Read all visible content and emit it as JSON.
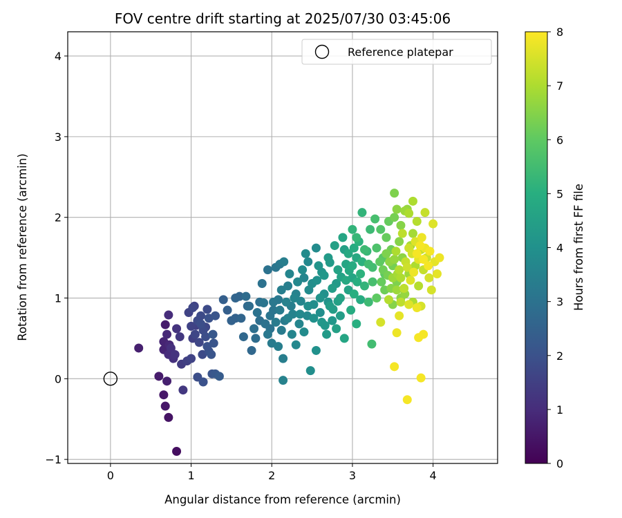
{
  "chart_data": {
    "type": "scatter",
    "title": "FOV centre drift starting at 2025/07/30 03:45:06",
    "xlabel": "Angular distance from reference (arcmin)",
    "ylabel": "Rotation from reference (arcmin)",
    "xlim": [
      -0.53,
      4.8
    ],
    "ylim": [
      -1.05,
      4.3
    ],
    "xticks": [
      0,
      1,
      2,
      3,
      4
    ],
    "yticks": [
      -1,
      0,
      1,
      2,
      3,
      4
    ],
    "xtick_labels": [
      "0",
      "1",
      "2",
      "3",
      "4"
    ],
    "ytick_labels": [
      "−1",
      "0",
      "1",
      "2",
      "3",
      "4"
    ],
    "grid": true,
    "legend": {
      "placement": "upper-right",
      "entries": [
        "Reference platepar"
      ]
    },
    "reference_point": {
      "x": 0,
      "y": 0,
      "label": "Reference platepar"
    },
    "colorbar": {
      "label": "Hours from first FF file",
      "range": [
        0,
        8
      ],
      "ticks": [
        0,
        1,
        2,
        3,
        4,
        5,
        6,
        7,
        8
      ],
      "tick_labels": [
        "0",
        "1",
        "2",
        "3",
        "4",
        "5",
        "6",
        "7",
        "8"
      ],
      "colormap": "viridis"
    },
    "points": [
      [
        0.35,
        0.38,
        0.7
      ],
      [
        0.6,
        0.03,
        0.6
      ],
      [
        0.66,
        -0.2,
        0.5
      ],
      [
        0.68,
        -0.34,
        0.5
      ],
      [
        0.72,
        -0.48,
        0.4
      ],
      [
        0.82,
        -0.9,
        0.3
      ],
      [
        0.66,
        0.46,
        0.8
      ],
      [
        0.68,
        0.67,
        0.6
      ],
      [
        0.7,
        -0.03,
        0.7
      ],
      [
        0.7,
        0.55,
        0.9
      ],
      [
        0.72,
        0.79,
        1.0
      ],
      [
        0.72,
        0.3,
        1.0
      ],
      [
        0.75,
        0.38,
        1.1
      ],
      [
        0.78,
        0.25,
        1.1
      ],
      [
        0.82,
        0.62,
        1.2
      ],
      [
        0.86,
        0.52,
        1.3
      ],
      [
        0.88,
        0.18,
        1.4
      ],
      [
        0.9,
        -0.14,
        1.3
      ],
      [
        0.66,
        0.36,
        0.8
      ],
      [
        0.8,
        0.3,
        1.2
      ],
      [
        0.73,
        0.42,
        0.9
      ],
      [
        0.97,
        0.82,
        1.6
      ],
      [
        1.0,
        0.65,
        1.6
      ],
      [
        1.02,
        0.88,
        1.7
      ],
      [
        1.05,
        0.55,
        1.7
      ],
      [
        1.08,
        0.72,
        1.8
      ],
      [
        1.1,
        0.45,
        1.7
      ],
      [
        1.12,
        0.68,
        1.9
      ],
      [
        1.15,
        0.6,
        1.8
      ],
      [
        1.18,
        0.52,
        1.9
      ],
      [
        1.2,
        0.4,
        2.0
      ],
      [
        1.22,
        0.75,
        2.0
      ],
      [
        1.25,
        0.3,
        2.1
      ],
      [
        1.27,
        0.55,
        2.2
      ],
      [
        1.3,
        0.78,
        2.1
      ],
      [
        1.3,
        0.06,
        2.2
      ],
      [
        1.35,
        0.03,
        2.3
      ],
      [
        1.08,
        0.02,
        1.9
      ],
      [
        1.15,
        -0.04,
        2.0
      ],
      [
        1.2,
        0.86,
        1.8
      ],
      [
        1.0,
        0.25,
        1.6
      ],
      [
        1.02,
        0.5,
        1.5
      ],
      [
        1.06,
        0.66,
        1.5
      ],
      [
        1.14,
        0.3,
        1.8
      ],
      [
        1.18,
        0.64,
        1.7
      ],
      [
        1.22,
        0.34,
        2.0
      ],
      [
        1.26,
        0.06,
        2.1
      ],
      [
        1.28,
        0.44,
        2.1
      ],
      [
        1.12,
        0.78,
        1.8
      ],
      [
        0.95,
        0.22,
        1.5
      ],
      [
        1.04,
        0.9,
        1.6
      ],
      [
        1.45,
        0.85,
        2.4
      ],
      [
        1.5,
        0.72,
        2.5
      ],
      [
        1.55,
        1.0,
        2.6
      ],
      [
        1.62,
        0.75,
        2.6
      ],
      [
        1.65,
        0.52,
        2.7
      ],
      [
        1.68,
        1.02,
        2.8
      ],
      [
        1.72,
        0.9,
        2.8
      ],
      [
        1.75,
        0.35,
        2.7
      ],
      [
        1.78,
        0.62,
        2.9
      ],
      [
        1.8,
        0.5,
        2.8
      ],
      [
        1.82,
        0.82,
        3.0
      ],
      [
        1.85,
        0.72,
        2.9
      ],
      [
        1.88,
        1.18,
        3.0
      ],
      [
        1.9,
        0.94,
        3.1
      ],
      [
        1.92,
        0.68,
        3.0
      ],
      [
        1.95,
        0.55,
        3.2
      ],
      [
        1.98,
        0.78,
        3.1
      ],
      [
        2.0,
        0.44,
        3.3
      ],
      [
        2.02,
        0.95,
        3.2
      ],
      [
        2.05,
        0.7,
        3.3
      ],
      [
        2.08,
        0.4,
        3.4
      ],
      [
        2.1,
        0.85,
        3.3
      ],
      [
        2.12,
        1.1,
        3.4
      ],
      [
        2.14,
        0.25,
        3.4
      ],
      [
        2.14,
        -0.02,
        3.5
      ],
      [
        2.15,
        1.45,
        3.4
      ],
      [
        2.18,
        0.95,
        3.5
      ],
      [
        2.2,
        0.75,
        3.5
      ],
      [
        2.22,
        1.3,
        3.6
      ],
      [
        2.25,
        0.55,
        3.6
      ],
      [
        2.28,
        1.0,
        3.6
      ],
      [
        2.3,
        0.42,
        3.7
      ],
      [
        2.32,
        1.2,
        3.7
      ],
      [
        2.35,
        0.8,
        3.7
      ],
      [
        2.38,
        1.35,
        3.8
      ],
      [
        2.4,
        0.58,
        3.8
      ],
      [
        2.42,
        1.55,
        3.8
      ],
      [
        2.45,
        0.9,
        3.9
      ],
      [
        2.48,
        0.1,
        3.9
      ],
      [
        2.5,
        1.18,
        3.9
      ],
      [
        2.52,
        0.75,
        4.0
      ],
      [
        2.55,
        0.35,
        4.0
      ],
      [
        2.58,
        1.4,
        4.1
      ],
      [
        2.6,
        1.0,
        4.1
      ],
      [
        2.62,
        0.7,
        4.2
      ],
      [
        2.65,
        1.28,
        4.2
      ],
      [
        2.68,
        0.55,
        4.3
      ],
      [
        2.7,
        1.5,
        4.3
      ],
      [
        2.72,
        0.9,
        4.4
      ],
      [
        2.75,
        1.12,
        4.4
      ],
      [
        2.78,
        1.65,
        4.5
      ],
      [
        2.8,
        0.62,
        4.5
      ],
      [
        2.82,
        1.35,
        4.6
      ],
      [
        2.85,
        1.0,
        4.6
      ],
      [
        2.88,
        1.75,
        4.7
      ],
      [
        2.9,
        0.5,
        4.7
      ],
      [
        2.92,
        1.22,
        4.8
      ],
      [
        2.95,
        1.55,
        4.8
      ],
      [
        2.98,
        0.85,
        4.9
      ],
      [
        3.0,
        1.4,
        4.9
      ],
      [
        3.02,
        1.05,
        5.0
      ],
      [
        3.05,
        0.68,
        5.0
      ],
      [
        3.08,
        1.7,
        5.1
      ],
      [
        3.1,
        1.3,
        5.1
      ],
      [
        3.12,
        2.06,
        5.2
      ],
      [
        3.15,
        1.15,
        5.2
      ],
      [
        3.18,
        1.58,
        5.3
      ],
      [
        3.2,
        0.95,
        5.4
      ],
      [
        3.22,
        1.85,
        5.4
      ],
      [
        3.24,
        0.43,
        5.5
      ],
      [
        3.25,
        1.38,
        5.5
      ],
      [
        3.28,
        1.98,
        5.6
      ],
      [
        1.6,
        1.02,
        2.6
      ],
      [
        1.7,
        0.9,
        2.7
      ],
      [
        1.4,
        0.98,
        2.4
      ],
      [
        1.55,
        0.75,
        2.5
      ],
      [
        1.85,
        0.95,
        2.9
      ],
      [
        1.95,
        1.35,
        3.0
      ],
      [
        2.05,
        1.38,
        3.1
      ],
      [
        2.1,
        1.42,
        3.2
      ],
      [
        2.2,
        1.15,
        3.4
      ],
      [
        2.3,
        1.05,
        3.5
      ],
      [
        2.4,
        1.25,
        3.6
      ],
      [
        2.45,
        1.45,
        3.7
      ],
      [
        2.55,
        1.62,
        3.8
      ],
      [
        2.6,
        0.82,
        3.9
      ],
      [
        2.65,
        1.05,
        4.0
      ],
      [
        2.7,
        0.95,
        4.1
      ],
      [
        2.75,
        0.72,
        4.2
      ],
      [
        2.8,
        1.18,
        4.3
      ],
      [
        2.85,
        0.78,
        4.4
      ],
      [
        2.9,
        1.6,
        4.5
      ],
      [
        2.95,
        1.1,
        4.6
      ],
      [
        3.0,
        1.25,
        4.7
      ],
      [
        3.05,
        1.5,
        4.8
      ],
      [
        3.1,
        0.98,
        4.9
      ],
      [
        1.98,
        0.62,
        3.0
      ],
      [
        2.02,
        0.85,
        3.1
      ],
      [
        2.08,
        0.98,
        3.2
      ],
      [
        2.12,
        0.6,
        3.3
      ],
      [
        2.16,
        0.72,
        3.3
      ],
      [
        2.24,
        0.9,
        3.4
      ],
      [
        2.26,
        0.8,
        3.5
      ],
      [
        2.34,
        0.68,
        3.6
      ],
      [
        2.36,
        0.96,
        3.6
      ],
      [
        2.44,
        0.78,
        3.7
      ],
      [
        2.46,
        1.1,
        3.8
      ],
      [
        2.52,
        0.92,
        3.9
      ],
      [
        2.56,
        1.22,
        4.0
      ],
      [
        2.62,
        1.32,
        4.1
      ],
      [
        2.66,
        0.66,
        4.2
      ],
      [
        2.72,
        1.44,
        4.3
      ],
      [
        2.76,
        0.86,
        4.4
      ],
      [
        2.82,
        0.96,
        4.5
      ],
      [
        2.86,
        1.26,
        4.6
      ],
      [
        2.92,
        1.42,
        4.7
      ],
      [
        2.96,
        1.34,
        4.8
      ],
      [
        3.02,
        1.62,
        4.9
      ],
      [
        3.06,
        1.2,
        5.0
      ],
      [
        3.12,
        1.45,
        5.1
      ],
      [
        3.0,
        1.85,
        5.2
      ],
      [
        3.05,
        1.75,
        5.3
      ],
      [
        3.15,
        1.6,
        5.4
      ],
      [
        3.2,
        1.42,
        5.5
      ],
      [
        3.25,
        1.2,
        5.6
      ],
      [
        3.3,
        1.62,
        5.7
      ],
      [
        3.35,
        1.85,
        5.8
      ],
      [
        3.38,
        1.5,
        5.9
      ],
      [
        3.4,
        1.3,
        6.0
      ],
      [
        3.42,
        1.75,
        6.1
      ],
      [
        3.45,
        1.95,
        6.1
      ],
      [
        3.48,
        1.6,
        6.2
      ],
      [
        3.5,
        1.4,
        6.3
      ],
      [
        3.52,
        2.0,
        6.3
      ],
      [
        3.55,
        1.2,
        6.4
      ],
      [
        3.58,
        1.7,
        6.5
      ],
      [
        3.6,
        1.9,
        6.5
      ],
      [
        3.62,
        1.5,
        6.6
      ],
      [
        3.65,
        1.05,
        6.7
      ],
      [
        3.68,
        2.1,
        6.7
      ],
      [
        3.7,
        1.3,
        6.8
      ],
      [
        3.72,
        1.65,
        6.9
      ],
      [
        3.75,
        1.8,
        6.9
      ],
      [
        3.78,
        1.4,
        7.0
      ],
      [
        3.8,
        1.95,
        7.1
      ],
      [
        3.82,
        1.15,
        7.1
      ],
      [
        3.85,
        1.6,
        7.2
      ],
      [
        3.88,
        1.35,
        7.3
      ],
      [
        3.9,
        2.06,
        7.3
      ],
      [
        3.92,
        1.5,
        7.4
      ],
      [
        3.95,
        1.25,
        7.5
      ],
      [
        3.98,
        1.1,
        7.5
      ],
      [
        4.0,
        1.92,
        7.6
      ],
      [
        4.02,
        1.45,
        7.7
      ],
      [
        4.05,
        1.3,
        7.7
      ],
      [
        4.08,
        1.5,
        7.8
      ],
      [
        3.52,
        2.3,
        6.4
      ],
      [
        3.55,
        2.1,
        6.6
      ],
      [
        3.65,
        2.08,
        6.8
      ],
      [
        3.75,
        2.2,
        7.0
      ],
      [
        3.7,
        2.05,
        7.0
      ],
      [
        3.3,
        1.0,
        6.0
      ],
      [
        3.4,
        1.1,
        6.2
      ],
      [
        3.6,
        1.0,
        6.6
      ],
      [
        3.75,
        0.95,
        7.0
      ],
      [
        3.85,
        0.9,
        7.5
      ],
      [
        3.5,
        0.92,
        6.5
      ],
      [
        3.55,
        1.1,
        6.8
      ],
      [
        3.38,
        1.35,
        6.2
      ],
      [
        3.42,
        1.55,
        6.4
      ],
      [
        3.46,
        1.45,
        6.6
      ],
      [
        3.5,
        1.25,
        6.8
      ],
      [
        3.54,
        1.58,
        7.0
      ],
      [
        3.58,
        1.35,
        7.1
      ],
      [
        3.62,
        1.8,
        7.2
      ],
      [
        3.66,
        1.45,
        7.3
      ],
      [
        3.7,
        1.62,
        7.4
      ],
      [
        3.74,
        1.55,
        7.5
      ],
      [
        3.78,
        1.7,
        7.6
      ],
      [
        3.82,
        1.48,
        7.7
      ],
      [
        3.86,
        1.75,
        7.8
      ],
      [
        3.9,
        1.62,
        7.8
      ],
      [
        3.94,
        1.4,
        7.9
      ],
      [
        3.96,
        1.58,
        7.9
      ],
      [
        3.6,
        1.25,
        7.0
      ],
      [
        3.64,
        1.12,
        7.2
      ],
      [
        3.68,
        1.38,
        7.4
      ],
      [
        3.72,
        1.22,
        7.6
      ],
      [
        3.76,
        1.32,
        7.8
      ],
      [
        3.8,
        1.55,
        7.9
      ],
      [
        3.84,
        1.65,
        7.9
      ],
      [
        3.88,
        1.48,
        7.9
      ],
      [
        3.34,
        1.45,
        6.0
      ],
      [
        3.36,
        1.2,
        6.1
      ],
      [
        3.44,
        1.28,
        6.3
      ],
      [
        3.48,
        1.12,
        6.5
      ],
      [
        3.52,
        1.48,
        6.7
      ],
      [
        3.56,
        1.3,
        6.9
      ],
      [
        3.35,
        0.7,
        7.5
      ],
      [
        3.55,
        0.57,
        7.8
      ],
      [
        3.52,
        0.15,
        7.9
      ],
      [
        3.68,
        -0.26,
        7.9
      ],
      [
        3.82,
        0.51,
        7.9
      ],
      [
        3.88,
        0.55,
        7.9
      ],
      [
        3.85,
        0.01,
        7.9
      ],
      [
        3.6,
        0.95,
        7.2
      ],
      [
        3.8,
        0.88,
        7.8
      ],
      [
        3.7,
        0.92,
        7.6
      ],
      [
        3.45,
        0.98,
        7.1
      ],
      [
        3.58,
        0.78,
        7.7
      ]
    ]
  }
}
